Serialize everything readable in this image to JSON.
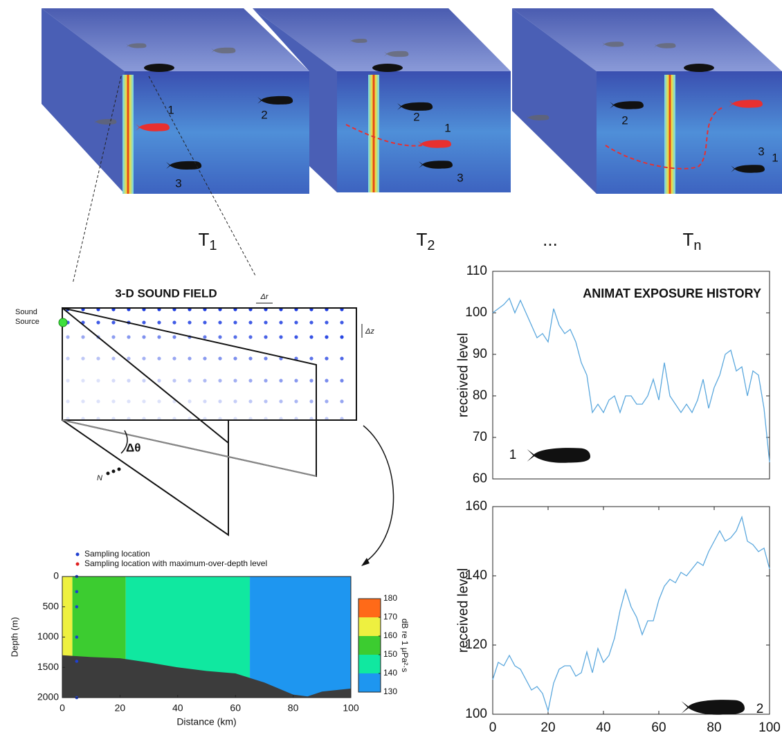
{
  "chart_data": [
    {
      "type": "line",
      "title": "ANIMAT EXPOSURE HISTORY",
      "ylabel": "received level",
      "marker_label": "1",
      "color": "#5aa7dd",
      "xlim": [
        0,
        100
      ],
      "ylim": [
        60,
        110
      ],
      "yticks": [
        60,
        70,
        80,
        90,
        100,
        110
      ],
      "x": [
        0,
        2,
        4,
        6,
        8,
        10,
        12,
        14,
        16,
        18,
        20,
        22,
        24,
        26,
        28,
        30,
        32,
        34,
        36,
        38,
        40,
        42,
        44,
        46,
        48,
        50,
        52,
        54,
        56,
        58,
        60,
        62,
        64,
        66,
        68,
        70,
        72,
        74,
        76,
        78,
        80,
        82,
        84,
        86,
        88,
        90,
        92,
        94,
        96,
        98,
        100
      ],
      "values": [
        100,
        101,
        102,
        103.5,
        100,
        103,
        100,
        97,
        94,
        95,
        93,
        101,
        97,
        95,
        96,
        93,
        88,
        85,
        76,
        78,
        76,
        79,
        80,
        76,
        80,
        80,
        78,
        78,
        80,
        84,
        79,
        88,
        80,
        78,
        76,
        78,
        76,
        79,
        84,
        77,
        82,
        85,
        90,
        91,
        86,
        87,
        80,
        86,
        85,
        77,
        64
      ]
    },
    {
      "type": "line",
      "ylabel": "received level",
      "marker_label": "2",
      "color": "#5aa7dd",
      "xlim": [
        0,
        100
      ],
      "ylim": [
        100,
        160
      ],
      "yticks": [
        100,
        120,
        140,
        160
      ],
      "xticks": [
        0,
        20,
        40,
        60,
        80,
        100
      ],
      "x": [
        0,
        2,
        4,
        6,
        8,
        10,
        12,
        14,
        16,
        18,
        20,
        22,
        24,
        26,
        28,
        30,
        32,
        34,
        36,
        38,
        40,
        42,
        44,
        46,
        48,
        50,
        52,
        54,
        56,
        58,
        60,
        62,
        64,
        66,
        68,
        70,
        72,
        74,
        76,
        78,
        80,
        82,
        84,
        86,
        88,
        90,
        92,
        94,
        96,
        98,
        100
      ],
      "values": [
        110,
        115,
        114,
        117,
        114,
        113,
        110,
        107,
        108,
        106,
        101,
        109,
        113,
        114,
        114,
        111,
        112,
        118,
        112,
        119,
        115,
        117,
        122,
        130,
        136,
        131,
        128,
        123,
        127,
        127,
        133,
        137,
        139,
        138,
        141,
        140,
        142,
        144,
        143,
        147,
        150,
        153,
        150,
        151,
        153,
        157,
        150,
        149,
        147,
        148,
        142
      ]
    },
    {
      "type": "contour",
      "xlabel": "Distance (km)",
      "ylabel": "Depth (m)",
      "xlim": [
        0,
        100
      ],
      "ylim": [
        2000,
        0
      ],
      "xticks": [
        0,
        20,
        40,
        60,
        80,
        100
      ],
      "yticks": [
        0,
        500,
        1000,
        1500,
        2000
      ],
      "legend": [
        {
          "name": "Sampling location",
          "color": "#1f3fd0"
        },
        {
          "name": "Sampling location with maximum-over-depth level",
          "color": "#e02020"
        }
      ],
      "colorbar": {
        "label": "dB re 1 μPa²·s",
        "ticks": [
          130,
          140,
          150,
          160,
          170,
          180
        ],
        "colors": [
          "#1e96f0",
          "#10e8a0",
          "#3ccc30",
          "#eef040",
          "#ff6a18"
        ]
      },
      "field": [
        {
          "x": [
            0,
            3.5
          ],
          "level": 165
        },
        {
          "x": [
            3.5,
            22
          ],
          "level": 155
        },
        {
          "x": [
            22,
            65
          ],
          "level": 145
        },
        {
          "x": [
            65,
            100
          ],
          "level": 135
        }
      ],
      "seabed": {
        "color": "#3c3c3c",
        "x": [
          0,
          10,
          20,
          30,
          40,
          50,
          60,
          70,
          80,
          85,
          90,
          100
        ],
        "depth": [
          1300,
          1330,
          1350,
          1420,
          1500,
          1560,
          1600,
          1750,
          1950,
          1980,
          1900,
          1850
        ]
      },
      "sampling": {
        "x": [
          5,
          5,
          5,
          5,
          5,
          5
        ],
        "depth": [
          0,
          250,
          500,
          1000,
          1400,
          2000
        ]
      }
    }
  ],
  "figure": {
    "time_labels": [
      {
        "base": "T",
        "sub": "1"
      },
      {
        "base": "T",
        "sub": "2"
      },
      {
        "base": "...",
        "sub": ""
      },
      {
        "base": "T",
        "sub": "n"
      }
    ],
    "block_labels": [
      [
        "1",
        "2",
        "3"
      ],
      [
        "2",
        "1",
        "3"
      ],
      [
        "2",
        "3",
        "1"
      ]
    ],
    "sound_field": {
      "title": "3-D SOUND FIELD",
      "source": [
        "Sound",
        "Source"
      ],
      "dr": "Δr",
      "dz": "Δz",
      "dtheta": "Δθ",
      "n": "N"
    }
  }
}
